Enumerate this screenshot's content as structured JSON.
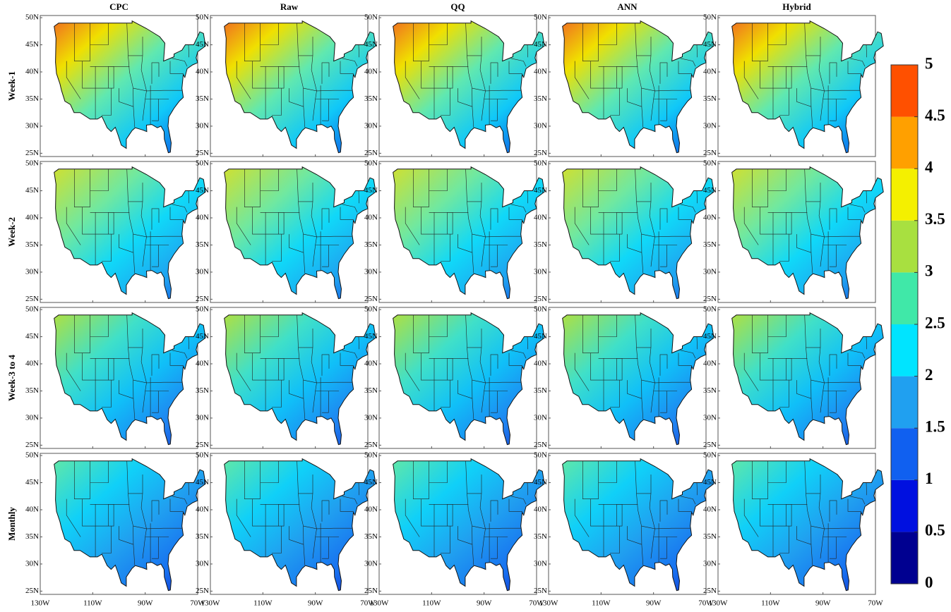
{
  "columns": [
    "CPC",
    "Raw",
    "QQ",
    "ANN",
    "Hybrid"
  ],
  "rows": [
    "Week-1",
    "Week-2",
    "Week-3 to 4",
    "Monthly"
  ],
  "lat_ticks": [
    {
      "value": 50,
      "label": "50N"
    },
    {
      "value": 45,
      "label": "45N"
    },
    {
      "value": 40,
      "label": "40N"
    },
    {
      "value": 35,
      "label": "35N"
    },
    {
      "value": 30,
      "label": "30N"
    },
    {
      "value": 25,
      "label": "25N"
    }
  ],
  "lon_ticks": [
    {
      "value": -130,
      "label": "130W"
    },
    {
      "value": -110,
      "label": "110W"
    },
    {
      "value": -90,
      "label": "90W"
    },
    {
      "value": -70,
      "label": "70W"
    }
  ],
  "colorbar": {
    "lim": [
      0,
      5
    ],
    "ticks": [
      0,
      0.5,
      1,
      1.5,
      2,
      2.5,
      3,
      3.5,
      4,
      4.5,
      5
    ],
    "colors": [
      "#000090",
      "#0010e0",
      "#1060f0",
      "#20a0f0",
      "#00e4ff",
      "#40e8a8",
      "#a8e040",
      "#f4f000",
      "#ffa000",
      "#ff5000"
    ]
  }
}
